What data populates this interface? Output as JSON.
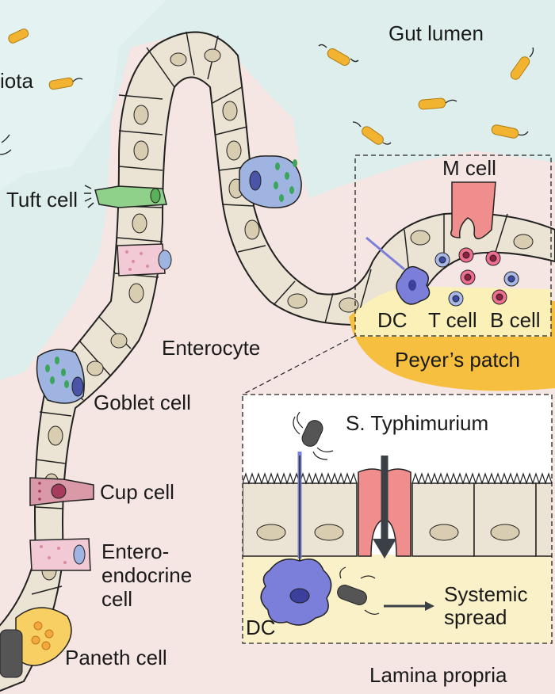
{
  "labels": {
    "gut_lumen": "Gut lumen",
    "microbiota_partial": "iota",
    "tuft_cell": "Tuft cell",
    "enterocyte": "Enterocyte",
    "goblet_cell": "Goblet cell",
    "cup_cell": "Cup cell",
    "enteroendocrine_cell": "Entero-\nendocrine\ncell",
    "paneth_cell": "Paneth cell",
    "m_cell": "M cell",
    "dc": "DC",
    "t_cell": "T cell",
    "b_cell": "B cell",
    "peyers_patch": "Peyer’s patch",
    "s_typhimurium": "S. Typhimurium",
    "inset_dc": "DC",
    "systemic_spread": "Systemic\nspread",
    "lamina_propria": "Lamina propria"
  },
  "colors": {
    "lumen": "#ddeeed",
    "lamina": "#f5e6e3",
    "cell_fill": "#ebe4d4",
    "nucleus": "#d9cdb1",
    "tuft": "#8fd18a",
    "goblet": "#9fb4e0",
    "cup": "#d999a6",
    "enteroendocrine": "#f2cad6",
    "paneth": "#f7cf63",
    "m_cell": "#f08d8d",
    "dc": "#7b7fd9",
    "peyers_patch": "#f6bf3f",
    "inset_bg": "#faf1c8",
    "bacteria": "#f2b430",
    "arrow": "#3a4046"
  }
}
